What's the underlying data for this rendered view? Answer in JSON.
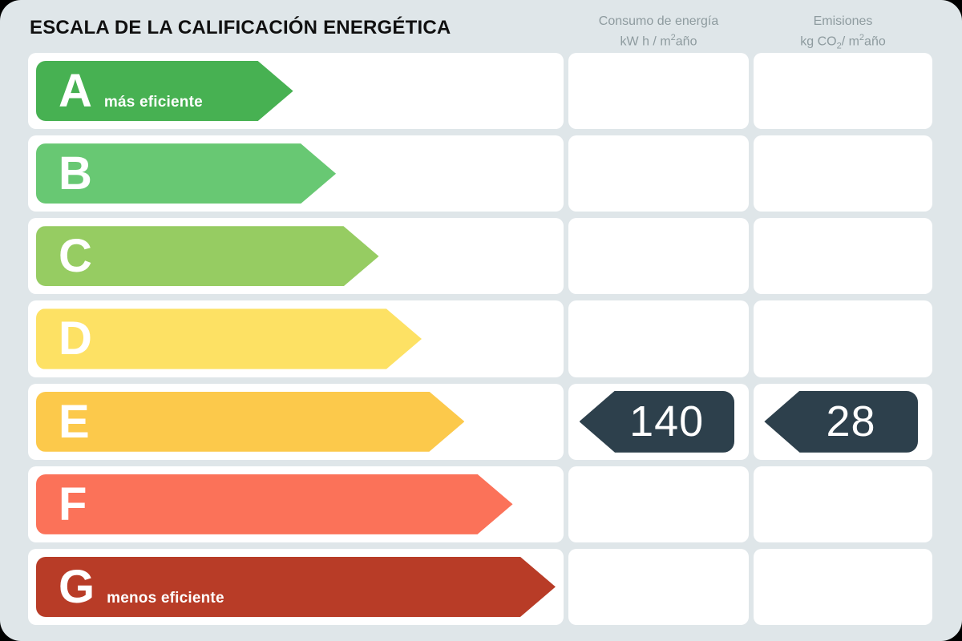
{
  "title": "ESCALA DE LA CALIFICACIÓN ENERGÉTICA",
  "columns": [
    {
      "id": "consumo",
      "line1": "Consumo de energía",
      "line2": {
        "p1": "kW h / m",
        "sup": "2",
        "p2": "año"
      }
    },
    {
      "id": "emisiones",
      "line1": "Emisiones",
      "line2": {
        "p1": "kg CO",
        "sub": "2",
        "p2": "/ m",
        "sup": "2",
        "p3": "año"
      }
    }
  ],
  "scale": {
    "rows": [
      {
        "grade": "A",
        "note": "más eficiente",
        "color": "#47b152",
        "width_pct": 48
      },
      {
        "grade": "B",
        "note": "",
        "color": "#68c873",
        "width_pct": 56
      },
      {
        "grade": "C",
        "note": "",
        "color": "#96cc62",
        "width_pct": 64
      },
      {
        "grade": "D",
        "note": "",
        "color": "#fde164",
        "width_pct": 72
      },
      {
        "grade": "E",
        "note": "",
        "color": "#fcc94b",
        "width_pct": 80
      },
      {
        "grade": "F",
        "note": "",
        "color": "#fb7259",
        "width_pct": 89
      },
      {
        "grade": "G",
        "note": "menos eficiente",
        "color": "#b83c27",
        "width_pct": 97
      }
    ],
    "rating": {
      "grade": "E",
      "consumo_value": "140",
      "emisiones_value": "28",
      "badge_color": "#2d404c"
    }
  },
  "chart_data": {
    "type": "bar",
    "title": "ESCALA DE LA CALIFICACIÓN ENERGÉTICA",
    "categories": [
      "A",
      "B",
      "C",
      "D",
      "E",
      "F",
      "G"
    ],
    "series": [
      {
        "name": "relative_arrow_length_pct",
        "values": [
          48,
          56,
          64,
          72,
          80,
          89,
          97
        ]
      }
    ],
    "bar_colors": [
      "#47b152",
      "#68c873",
      "#96cc62",
      "#fde164",
      "#fcc94b",
      "#fb7259",
      "#b83c27"
    ],
    "annotations": {
      "rated_grade": "E",
      "consumo_de_energia_kWh_m2_ano": 140,
      "emisiones_kgCO2_m2_ano": 28,
      "best_label": "más eficiente",
      "worst_label": "menos eficiente"
    },
    "column_headers": [
      "Consumo de energía kW h / m²año",
      "Emisiones kg CO₂/ m²año"
    ],
    "orientation": "horizontal",
    "legend": false,
    "grid": false
  }
}
